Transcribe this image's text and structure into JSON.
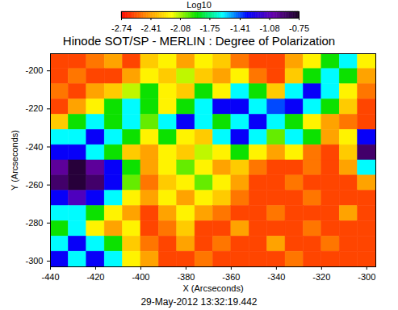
{
  "chart_data": {
    "type": "heatmap",
    "title": "Hinode SOT/SP - MERLIN : Degree of Polarization",
    "caption": "29-May-2012 13:32:19.442",
    "x_label": "X (Arcseconds)",
    "y_label": "Y (Arcseconds)",
    "xlim": [
      -440,
      -296
    ],
    "ylim": [
      -303,
      -191
    ],
    "xticks": [
      -440,
      -420,
      -400,
      -380,
      -360,
      -340,
      -320,
      -300
    ],
    "yticks": [
      -300,
      -280,
      -260,
      -240,
      -220,
      -200
    ],
    "x_bins": [
      -440,
      -432,
      -424,
      -416,
      -408,
      -400,
      -392,
      -384,
      -376,
      -368,
      -360,
      -352,
      -344,
      -336,
      -328,
      -320,
      -312,
      -304,
      -296
    ],
    "y_bins": [
      -191,
      -199,
      -207,
      -215,
      -223,
      -231,
      -239,
      -247,
      -255,
      -263,
      -271,
      -279,
      -287,
      -295,
      -303
    ],
    "values": [
      [
        -2.6,
        -2.6,
        -2.5,
        -2.4,
        -2.6,
        -2.3,
        -2.2,
        -2.4,
        -2.2,
        -2.3,
        -2.5,
        -2.6,
        -2.6,
        -2.4,
        -2.2,
        -1.9,
        -1.6,
        -2.2
      ],
      [
        -2.6,
        -2.5,
        -2.6,
        -2.6,
        -2.4,
        -2.2,
        -2.3,
        -2.1,
        -2.3,
        -2.4,
        -2.2,
        -2.5,
        -2.6,
        -2.3,
        -1.9,
        -1.6,
        -1.9,
        -2.4
      ],
      [
        -2.5,
        -2.6,
        -2.4,
        -2.3,
        -2.1,
        -1.9,
        -2.2,
        -2.3,
        -1.9,
        -2.2,
        -1.6,
        -1.9,
        -2.3,
        -1.6,
        -1.3,
        -1.6,
        -2.2,
        -2.5
      ],
      [
        -2.6,
        -2.4,
        -2.2,
        -1.9,
        -1.6,
        -1.9,
        -2.2,
        -1.9,
        -1.6,
        -1.3,
        -1.3,
        -1.6,
        -1.4,
        -1.3,
        -1.6,
        -1.9,
        -2.3,
        -2.6
      ],
      [
        -2.3,
        -1.9,
        -1.6,
        -1.9,
        -1.6,
        -2.0,
        -1.6,
        -1.3,
        -1.6,
        -1.9,
        -1.6,
        -1.3,
        -1.6,
        -1.9,
        -2.2,
        -2.4,
        -2.5,
        -2.6
      ],
      [
        -1.6,
        -1.6,
        -1.3,
        -1.6,
        -1.9,
        -2.2,
        -1.9,
        -2.2,
        -2.3,
        -1.6,
        -1.3,
        -1.6,
        -2.0,
        -1.6,
        -1.9,
        -2.4,
        -2.2,
        -1.3
      ],
      [
        -1.3,
        -1.3,
        -1.6,
        -1.9,
        -2.3,
        -2.4,
        -2.2,
        -2.3,
        -2.1,
        -2.2,
        -1.9,
        -2.2,
        -2.4,
        -2.2,
        -2.5,
        -2.6,
        -2.3,
        -0.9
      ],
      [
        -1.0,
        -0.8,
        -1.0,
        -1.3,
        -1.9,
        -2.4,
        -2.2,
        -2.0,
        -2.2,
        -2.4,
        -2.3,
        -2.5,
        -2.6,
        -2.6,
        -2.5,
        -2.6,
        -2.4,
        -1.6
      ],
      [
        -0.9,
        -0.8,
        -0.9,
        -1.3,
        -2.0,
        -2.5,
        -2.3,
        -2.2,
        -2.0,
        -2.2,
        -2.4,
        -2.6,
        -2.6,
        -2.5,
        -2.6,
        -2.6,
        -2.6,
        -2.4
      ],
      [
        -1.3,
        -1.1,
        -1.3,
        -1.6,
        -2.2,
        -2.4,
        -2.2,
        -2.4,
        -2.2,
        -2.3,
        -2.5,
        -2.6,
        -2.6,
        -2.6,
        -2.5,
        -2.6,
        -2.6,
        -2.6
      ],
      [
        -1.6,
        -1.6,
        -1.9,
        -2.2,
        -2.4,
        -2.6,
        -2.4,
        -2.2,
        -2.4,
        -2.5,
        -2.6,
        -2.6,
        -2.5,
        -2.6,
        -2.6,
        -2.6,
        -2.4,
        -2.6
      ],
      [
        -1.9,
        -1.6,
        -2.2,
        -2.4,
        -2.2,
        -2.6,
        -2.5,
        -2.3,
        -2.6,
        -2.6,
        -2.4,
        -2.6,
        -2.6,
        -2.6,
        -2.5,
        -2.6,
        -2.6,
        -2.6
      ],
      [
        -1.6,
        -1.3,
        -1.6,
        -1.9,
        -2.3,
        -2.5,
        -2.6,
        -2.4,
        -2.6,
        -2.5,
        -2.6,
        -2.6,
        -2.4,
        -2.6,
        -2.6,
        -2.5,
        -2.6,
        -2.6
      ],
      [
        -1.3,
        -1.6,
        -1.3,
        -1.6,
        -2.2,
        -2.4,
        -2.6,
        -2.6,
        -2.5,
        -2.6,
        -2.6,
        -2.6,
        -2.6,
        -2.5,
        -2.6,
        -2.6,
        -2.6,
        -2.6
      ]
    ],
    "colorbar": {
      "label": "Log10",
      "range": [
        -2.74,
        -0.75
      ],
      "ticks": [
        -2.74,
        -2.41,
        -2.08,
        -1.75,
        -1.41,
        -1.08,
        -0.75
      ],
      "colors": [
        "#ff0000",
        "#ff8c00",
        "#ffff00",
        "#00e000",
        "#00ffff",
        "#0000ff",
        "#6600aa",
        "#1a0022"
      ]
    }
  }
}
